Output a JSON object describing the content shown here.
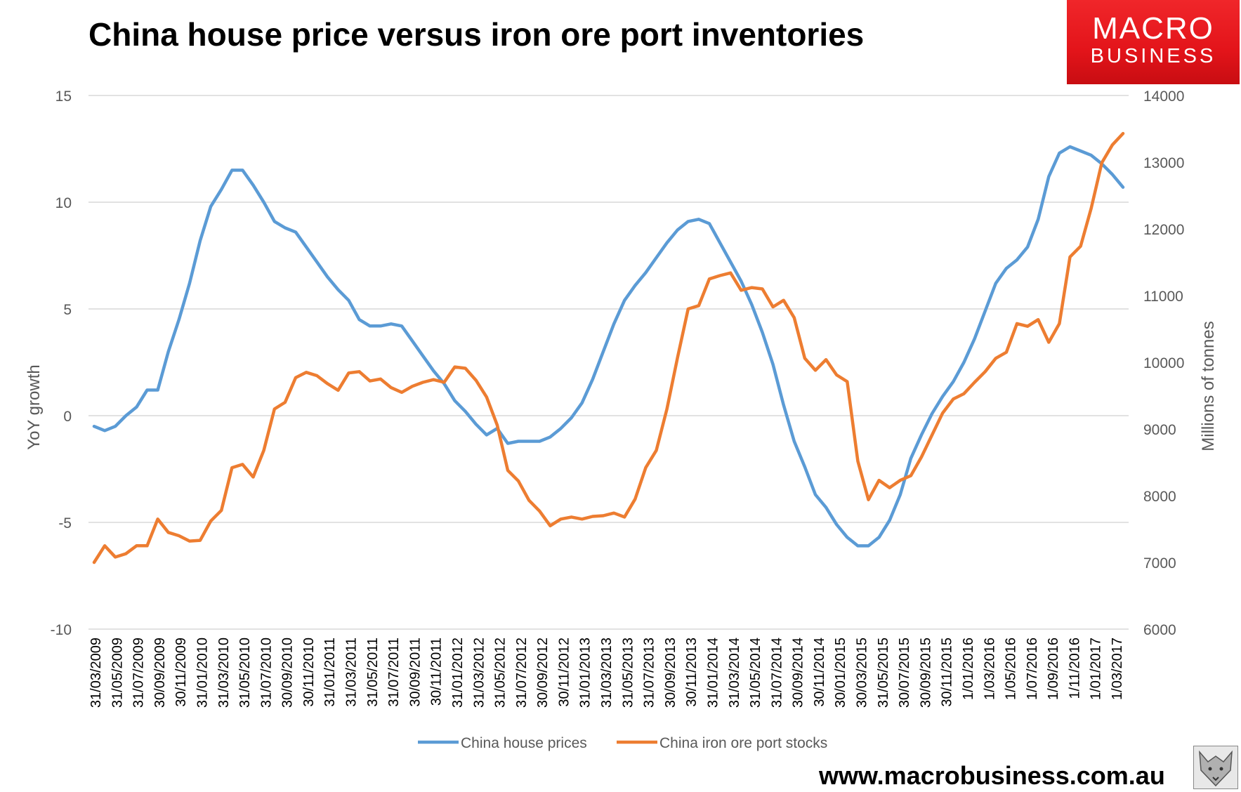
{
  "chart_data": {
    "type": "line",
    "title": "China house price versus iron ore port inventories",
    "ylabel": "YoY growth",
    "y2label": "Millions of tonnes",
    "ylim": [
      -10,
      15
    ],
    "y2lim": [
      6000,
      14000
    ],
    "yticks": [
      "15",
      "10",
      "5",
      "0",
      "-5",
      "-10"
    ],
    "y2ticks": [
      "14000",
      "13000",
      "12000",
      "11000",
      "10000",
      "9000",
      "8000",
      "7000",
      "6000"
    ],
    "grid": true,
    "legend_position": "bottom",
    "x_tick_labels": [
      "31/03/2009",
      "31/05/2009",
      "31/07/2009",
      "30/09/2009",
      "30/11/2009",
      "31/01/2010",
      "31/03/2010",
      "31/05/2010",
      "31/07/2010",
      "30/09/2010",
      "30/11/2010",
      "31/01/2011",
      "31/03/2011",
      "31/05/2011",
      "31/07/2011",
      "30/09/2011",
      "30/11/2011",
      "31/01/2012",
      "31/03/2012",
      "31/05/2012",
      "31/07/2012",
      "30/09/2012",
      "30/11/2012",
      "31/01/2013",
      "31/03/2013",
      "31/05/2013",
      "31/07/2013",
      "30/09/2013",
      "30/11/2013",
      "31/01/2014",
      "31/03/2014",
      "31/05/2014",
      "31/07/2014",
      "30/09/2014",
      "30/11/2014",
      "30/01/2015",
      "30/03/2015",
      "31/05/2015",
      "30/07/2015",
      "30/09/2015",
      "30/11/2015",
      "1/01/2016",
      "1/03/2016",
      "1/05/2016",
      "1/07/2016",
      "1/09/2016",
      "1/11/2016",
      "1/01/2017",
      "1/03/2017"
    ],
    "series": [
      {
        "name": "China house prices",
        "axis": "left",
        "color": "#5b9bd5",
        "values": [
          -0.5,
          -0.7,
          -0.5,
          0,
          0.4,
          1.2,
          1.2,
          3,
          4.5,
          6.2,
          8.2,
          9.8,
          10.6,
          11.5,
          11.5,
          10.8,
          10,
          9.1,
          8.8,
          8.6,
          7.9,
          7.2,
          6.5,
          5.9,
          5.4,
          4.5,
          4.2,
          4.2,
          4.3,
          4.2,
          3.5,
          2.8,
          2.1,
          1.5,
          0.7,
          0.2,
          -0.4,
          -0.9,
          -0.6,
          -1.3,
          -1.2,
          -1.2,
          -1.2,
          -1,
          -0.6,
          -0.1,
          0.6,
          1.7,
          3,
          4.3,
          5.4,
          6.1,
          6.7,
          7.4,
          8.1,
          8.7,
          9.1,
          9.2,
          9,
          8.1,
          7.2,
          6.3,
          5.2,
          3.9,
          2.4,
          0.5,
          -1.2,
          -2.4,
          -3.7,
          -4.3,
          -5.1,
          -5.7,
          -6.1,
          -6.1,
          -5.7,
          -4.9,
          -3.7,
          -2,
          -0.9,
          0.1,
          0.9,
          1.6,
          2.5,
          3.6,
          4.9,
          6.2,
          6.9,
          7.3,
          7.9,
          9.2,
          11.2,
          12.3,
          12.6,
          12.4,
          12.2,
          11.8,
          11.3,
          10.7
        ]
      },
      {
        "name": "China iron ore port stocks",
        "axis": "right",
        "color": "#ed7d31",
        "values": [
          7000,
          7250,
          7080,
          7130,
          7250,
          7250,
          7650,
          7450,
          7400,
          7320,
          7330,
          7620,
          7780,
          8420,
          8470,
          8280,
          8680,
          9300,
          9400,
          9770,
          9850,
          9800,
          9680,
          9580,
          9840,
          9860,
          9720,
          9750,
          9620,
          9550,
          9640,
          9700,
          9740,
          9700,
          9930,
          9910,
          9730,
          9480,
          9060,
          8380,
          8220,
          7930,
          7770,
          7550,
          7650,
          7680,
          7650,
          7690,
          7700,
          7740,
          7680,
          7950,
          8420,
          8680,
          9300,
          10070,
          10800,
          10850,
          11250,
          11300,
          11340,
          11080,
          11120,
          11100,
          10830,
          10930,
          10670,
          10060,
          9880,
          10040,
          9810,
          9710,
          8520,
          7940,
          8230,
          8120,
          8230,
          8300,
          8580,
          8910,
          9240,
          9450,
          9530,
          9700,
          9860,
          10060,
          10150,
          10580,
          10540,
          10640,
          10300,
          10580,
          11580,
          11740,
          12310,
          12990,
          13260,
          13430
        ]
      }
    ]
  }
}
